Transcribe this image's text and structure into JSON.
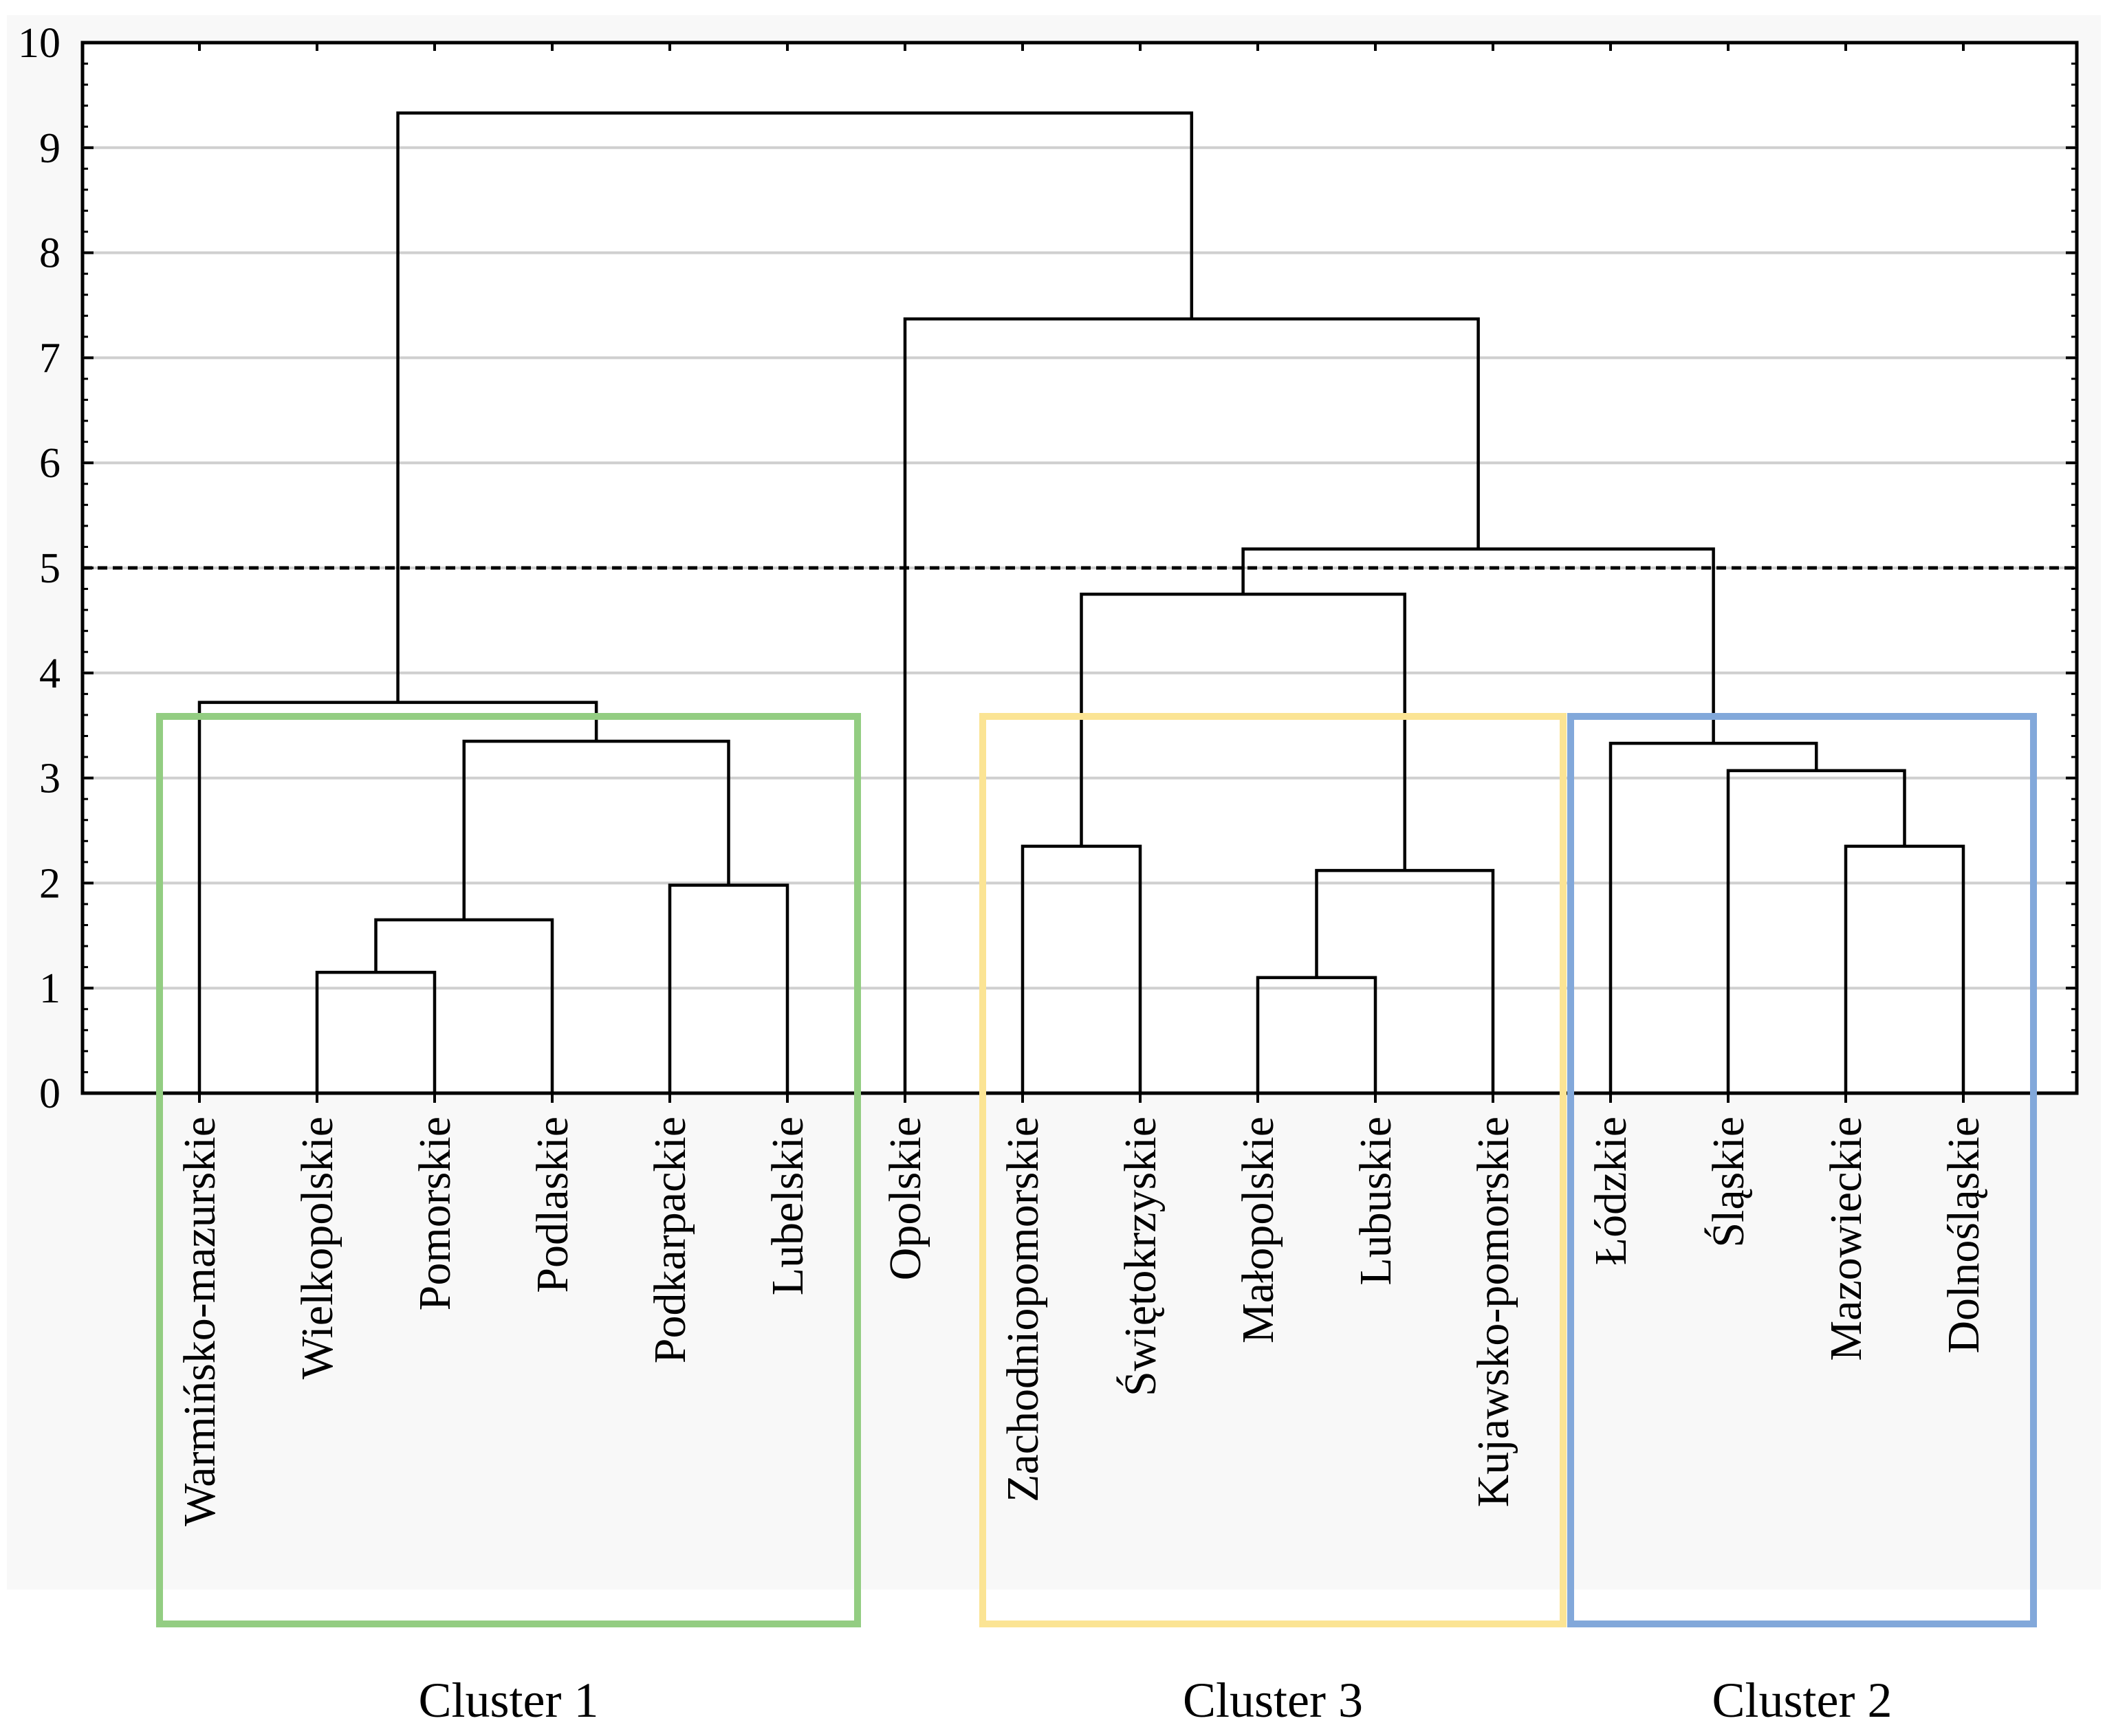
{
  "chart_data": {
    "type": "dendrogram",
    "title": "",
    "xlabel": "",
    "ylabel": "",
    "ylim": [
      0,
      10
    ],
    "yticks": [
      0,
      1,
      2,
      3,
      4,
      5,
      6,
      7,
      8,
      9,
      10
    ],
    "grid": true,
    "cut_height": 5.0,
    "leaves": [
      "Warmińsko-mazurskie",
      "Wielkopolskie",
      "Pomorskie",
      "Podlaskie",
      "Podkarpackie",
      "Lubelskie",
      "Opolskie",
      "Zachodniopomorskie",
      "Świętokrzyskie",
      "Małopolskie",
      "Lubuskie",
      "Kujawsko-pomorskie",
      "Łódzkie",
      "Śląskie",
      "Mazowieckie",
      "Dolnośląskie"
    ],
    "merges": [
      {
        "id": "m1",
        "left": 1,
        "right": 2,
        "height": 1.15
      },
      {
        "id": "m2",
        "left": "m1",
        "right": 3,
        "height": 1.65
      },
      {
        "id": "m3",
        "left": 4,
        "right": 5,
        "height": 1.98
      },
      {
        "id": "m4",
        "left": "m2",
        "right": "m3",
        "height": 3.35
      },
      {
        "id": "m5",
        "left": 0,
        "right": "m4",
        "height": 3.72
      },
      {
        "id": "m6",
        "left": 7,
        "right": 8,
        "height": 2.35
      },
      {
        "id": "m7",
        "left": 9,
        "right": 10,
        "height": 1.1
      },
      {
        "id": "m8",
        "left": "m7",
        "right": 11,
        "height": 2.12
      },
      {
        "id": "m9",
        "left": "m6",
        "right": "m8",
        "height": 4.75
      },
      {
        "id": "m10",
        "left": 14,
        "right": 15,
        "height": 2.35
      },
      {
        "id": "m11",
        "left": 13,
        "right": "m10",
        "height": 3.07
      },
      {
        "id": "m12",
        "left": 12,
        "right": "m11",
        "height": 3.33
      },
      {
        "id": "m13",
        "left": "m9",
        "right": "m12",
        "height": 5.18
      },
      {
        "id": "m14",
        "left": 6,
        "right": "m13",
        "height": 7.37
      },
      {
        "id": "m15",
        "left": "m5",
        "right": "m14",
        "height": 9.33
      }
    ],
    "clusters": [
      {
        "label": "Cluster 1",
        "color": "#93cd82",
        "first_leaf": 0,
        "last_leaf": 5
      },
      {
        "label": "Cluster 3",
        "color": "#fbe494",
        "first_leaf": 7,
        "last_leaf": 11
      },
      {
        "label": "Cluster 2",
        "color": "#82a8da",
        "first_leaf": 12,
        "last_leaf": 15
      }
    ]
  }
}
